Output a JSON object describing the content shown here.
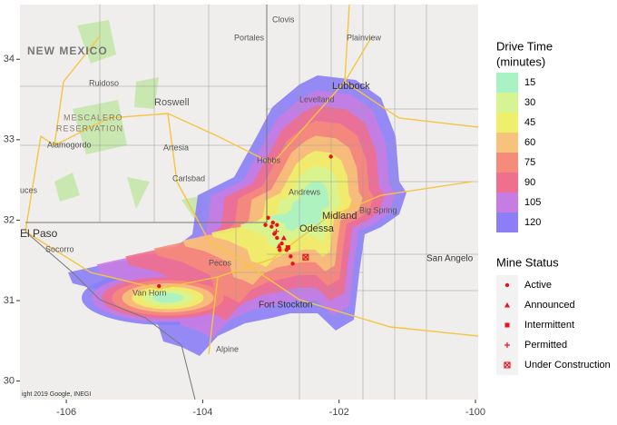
{
  "map": {
    "xlim": [
      -106.68,
      -99.96
    ],
    "ylim": [
      29.77,
      34.68
    ],
    "xticks": [
      -106,
      -104,
      -102,
      -100
    ],
    "yticks": [
      30,
      31,
      32,
      33,
      34
    ],
    "attribution": "ight 2019 Google, INEGI",
    "places": {
      "clovis": "Clovis",
      "portales": "Portales",
      "plainview": "Plainview",
      "lubbock": "Lubbock",
      "levelland": "Levelland",
      "new_mexico": "NEW MEXICO",
      "ruidoso": "Ruidoso",
      "roswell": "Roswell",
      "mescalero": "MESCALERO",
      "reservation": "RESERVATION",
      "alamogordo": "Alamogordo",
      "artesia": "Artesia",
      "hobbs": "Hobbs",
      "carlsbad": "Carlsbad",
      "andrews": "Andrews",
      "odessa": "Odessa",
      "midland": "Midland",
      "big_spring": "Big Spring",
      "el_paso": "El Paso",
      "socorro": "Socorro",
      "pecos": "Pecos",
      "van_horn": "Van Horn",
      "fort_stockton": "Fort Stockton",
      "alpine": "Alpine",
      "san_angelo": "San Angelo",
      "las_cruces": "uces"
    }
  },
  "legend": {
    "drive_time": {
      "title": [
        "Drive Time",
        "(minutes)"
      ],
      "items": [
        {
          "value": 15,
          "color": "#a9f2c4"
        },
        {
          "value": 30,
          "color": "#d6f592"
        },
        {
          "value": 45,
          "color": "#eef06c"
        },
        {
          "value": 60,
          "color": "#f7c27c"
        },
        {
          "value": 75,
          "color": "#f58b7b"
        },
        {
          "value": 90,
          "color": "#ee6f8e"
        },
        {
          "value": 105,
          "color": "#c67ce3"
        },
        {
          "value": 120,
          "color": "#8b7ef6"
        }
      ]
    },
    "mine_status": {
      "title": "Mine Status",
      "color": "#e8121c",
      "items": [
        {
          "label": "Active",
          "points": [
            [
              -102.12,
              32.79
            ],
            [
              -104.64,
              31.18
            ],
            [
              -103.04,
              32.03
            ],
            [
              -102.97,
              31.97
            ],
            [
              -102.99,
              31.92
            ],
            [
              -102.91,
              31.94
            ],
            [
              -103.08,
              31.94
            ],
            [
              -102.95,
              31.83
            ],
            [
              -102.91,
              31.78
            ],
            [
              -102.84,
              31.71
            ],
            [
              -102.87,
              31.63
            ],
            [
              -102.77,
              31.63
            ],
            [
              -102.71,
              31.55
            ],
            [
              -102.68,
              31.46
            ]
          ]
        },
        {
          "label": "Announced",
          "points": [
            [
              -102.81,
              31.78
            ],
            [
              -102.88,
              31.68
            ]
          ]
        },
        {
          "label": "Intermittent",
          "points": [
            [
              -102.75,
              31.66
            ]
          ]
        },
        {
          "label": "Permitted",
          "points": [
            [
              -102.92,
              31.86
            ]
          ]
        },
        {
          "label": "Under Construction",
          "points": [
            [
              -102.49,
              31.54
            ]
          ]
        }
      ]
    }
  }
}
